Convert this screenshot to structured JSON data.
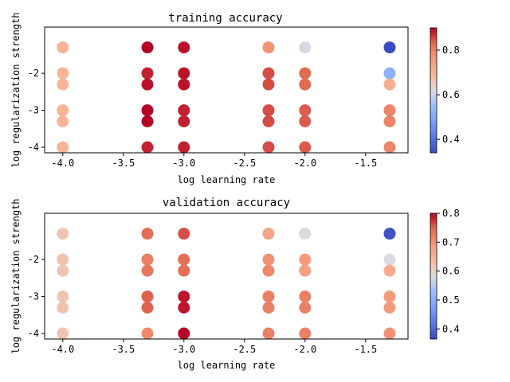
{
  "chart_data": [
    {
      "type": "scatter",
      "title": "training accuracy",
      "xlabel": "log learning rate",
      "ylabel": "log regularization strength",
      "xlim": [
        -4.15,
        -1.15
      ],
      "ylim": [
        -4.15,
        -0.75
      ],
      "xticks": [
        -4.0,
        -3.5,
        -3.0,
        -2.5,
        -2.0,
        -1.5
      ],
      "xtick_labels": [
        "-4.0",
        "-3.5",
        "-3.0",
        "-2.5",
        "-2.0",
        "-1.5"
      ],
      "yticks": [
        -2,
        -3,
        -4
      ],
      "ytick_labels": [
        "-2",
        "-3",
        "-4"
      ],
      "colormap": "coolwarm",
      "colorbar": {
        "min": 0.34,
        "max": 0.9,
        "ticks": [
          0.4,
          0.6,
          0.8
        ],
        "tick_labels": [
          "0.4",
          "0.6",
          "0.8"
        ]
      },
      "points": [
        {
          "x": -4.0,
          "y": -1.301,
          "value": 0.7
        },
        {
          "x": -4.0,
          "y": -2.0,
          "value": 0.7
        },
        {
          "x": -4.0,
          "y": -2.301,
          "value": 0.7
        },
        {
          "x": -4.0,
          "y": -3.0,
          "value": 0.7
        },
        {
          "x": -4.0,
          "y": -3.301,
          "value": 0.7
        },
        {
          "x": -4.0,
          "y": -4.0,
          "value": 0.7
        },
        {
          "x": -3.301,
          "y": -1.301,
          "value": 0.9
        },
        {
          "x": -3.301,
          "y": -2.0,
          "value": 0.88
        },
        {
          "x": -3.301,
          "y": -2.301,
          "value": 0.89
        },
        {
          "x": -3.301,
          "y": -3.0,
          "value": 0.9
        },
        {
          "x": -3.301,
          "y": -3.301,
          "value": 0.9
        },
        {
          "x": -3.301,
          "y": -4.0,
          "value": 0.88
        },
        {
          "x": -3.0,
          "y": -1.301,
          "value": 0.89
        },
        {
          "x": -3.0,
          "y": -2.0,
          "value": 0.89
        },
        {
          "x": -3.0,
          "y": -2.301,
          "value": 0.89
        },
        {
          "x": -3.0,
          "y": -3.0,
          "value": 0.88
        },
        {
          "x": -3.0,
          "y": -3.301,
          "value": 0.88
        },
        {
          "x": -3.0,
          "y": -4.0,
          "value": 0.88
        },
        {
          "x": -2.301,
          "y": -1.301,
          "value": 0.77
        },
        {
          "x": -2.301,
          "y": -2.0,
          "value": 0.85
        },
        {
          "x": -2.301,
          "y": -2.301,
          "value": 0.85
        },
        {
          "x": -2.301,
          "y": -3.0,
          "value": 0.85
        },
        {
          "x": -2.301,
          "y": -3.301,
          "value": 0.85
        },
        {
          "x": -2.301,
          "y": -4.0,
          "value": 0.85
        },
        {
          "x": -2.0,
          "y": -1.301,
          "value": 0.61
        },
        {
          "x": -2.0,
          "y": -2.0,
          "value": 0.83
        },
        {
          "x": -2.0,
          "y": -2.301,
          "value": 0.83
        },
        {
          "x": -2.0,
          "y": -3.0,
          "value": 0.84
        },
        {
          "x": -2.0,
          "y": -3.301,
          "value": 0.84
        },
        {
          "x": -2.0,
          "y": -4.0,
          "value": 0.84
        },
        {
          "x": -1.301,
          "y": -1.301,
          "value": 0.34
        },
        {
          "x": -1.301,
          "y": -2.0,
          "value": 0.52
        },
        {
          "x": -1.301,
          "y": -2.301,
          "value": 0.71
        },
        {
          "x": -1.301,
          "y": -3.0,
          "value": 0.79
        },
        {
          "x": -1.301,
          "y": -3.301,
          "value": 0.79
        },
        {
          "x": -1.301,
          "y": -4.0,
          "value": 0.79
        }
      ]
    },
    {
      "type": "scatter",
      "title": "validation accuracy",
      "xlabel": "log learning rate",
      "ylabel": "log regularization strength",
      "xlim": [
        -4.15,
        -1.15
      ],
      "ylim": [
        -4.15,
        -0.75
      ],
      "xticks": [
        -4.0,
        -3.5,
        -3.0,
        -2.5,
        -2.0,
        -1.5
      ],
      "xtick_labels": [
        "-4.0",
        "-3.5",
        "-3.0",
        "-2.5",
        "-2.0",
        "-1.5"
      ],
      "yticks": [
        -2,
        -3,
        -4
      ],
      "ytick_labels": [
        "-2",
        "-3",
        "-4"
      ],
      "colormap": "coolwarm",
      "colorbar": {
        "min": 0.365,
        "max": 0.8,
        "ticks": [
          0.4,
          0.5,
          0.6,
          0.7,
          0.8
        ],
        "tick_labels": [
          "0.4",
          "0.5",
          "0.6",
          "0.7",
          "0.8"
        ]
      },
      "points": [
        {
          "x": -4.0,
          "y": -1.301,
          "value": 0.62
        },
        {
          "x": -4.0,
          "y": -2.0,
          "value": 0.62
        },
        {
          "x": -4.0,
          "y": -2.301,
          "value": 0.62
        },
        {
          "x": -4.0,
          "y": -3.0,
          "value": 0.62
        },
        {
          "x": -4.0,
          "y": -3.301,
          "value": 0.62
        },
        {
          "x": -4.0,
          "y": -4.0,
          "value": 0.62
        },
        {
          "x": -3.301,
          "y": -1.301,
          "value": 0.74
        },
        {
          "x": -3.301,
          "y": -2.0,
          "value": 0.72
        },
        {
          "x": -3.301,
          "y": -2.301,
          "value": 0.73
        },
        {
          "x": -3.301,
          "y": -3.0,
          "value": 0.75
        },
        {
          "x": -3.301,
          "y": -3.301,
          "value": 0.75
        },
        {
          "x": -3.301,
          "y": -4.0,
          "value": 0.71
        },
        {
          "x": -3.0,
          "y": -1.301,
          "value": 0.76
        },
        {
          "x": -3.0,
          "y": -2.0,
          "value": 0.74
        },
        {
          "x": -3.0,
          "y": -2.301,
          "value": 0.74
        },
        {
          "x": -3.0,
          "y": -3.0,
          "value": 0.79
        },
        {
          "x": -3.0,
          "y": -3.301,
          "value": 0.79
        },
        {
          "x": -3.0,
          "y": -4.0,
          "value": 0.8
        },
        {
          "x": -2.301,
          "y": -1.301,
          "value": 0.67
        },
        {
          "x": -2.301,
          "y": -2.0,
          "value": 0.7
        },
        {
          "x": -2.301,
          "y": -2.301,
          "value": 0.71
        },
        {
          "x": -2.301,
          "y": -3.0,
          "value": 0.72
        },
        {
          "x": -2.301,
          "y": -3.301,
          "value": 0.72
        },
        {
          "x": -2.301,
          "y": -4.0,
          "value": 0.72
        },
        {
          "x": -2.0,
          "y": -1.301,
          "value": 0.58
        },
        {
          "x": -2.0,
          "y": -2.0,
          "value": 0.69
        },
        {
          "x": -2.0,
          "y": -2.301,
          "value": 0.68
        },
        {
          "x": -2.0,
          "y": -3.0,
          "value": 0.72
        },
        {
          "x": -2.0,
          "y": -3.301,
          "value": 0.72
        },
        {
          "x": -2.0,
          "y": -4.0,
          "value": 0.72
        },
        {
          "x": -1.301,
          "y": -1.301,
          "value": 0.37
        },
        {
          "x": -1.301,
          "y": -2.0,
          "value": 0.58
        },
        {
          "x": -1.301,
          "y": -2.301,
          "value": 0.66
        },
        {
          "x": -1.301,
          "y": -3.0,
          "value": 0.69
        },
        {
          "x": -1.301,
          "y": -3.301,
          "value": 0.69
        },
        {
          "x": -1.301,
          "y": -4.0,
          "value": 0.7
        }
      ]
    }
  ]
}
